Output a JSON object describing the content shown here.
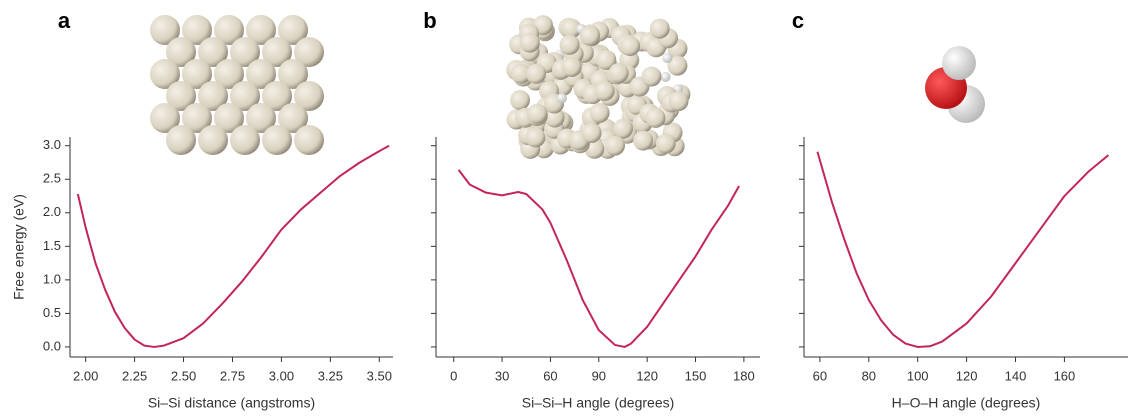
{
  "chart_data": [
    {
      "type": "line",
      "title": "a",
      "x_label": "Si–Si distance (angstroms)",
      "y_label": "Free energy (eV)",
      "x": [
        1.96,
        2.0,
        2.05,
        2.1,
        2.15,
        2.2,
        2.25,
        2.3,
        2.35,
        2.4,
        2.5,
        2.6,
        2.7,
        2.8,
        2.9,
        3.0,
        3.1,
        3.2,
        3.3,
        3.4,
        3.5,
        3.55
      ],
      "series": [
        {
          "color": "#c2255c",
          "values": [
            2.28,
            1.78,
            1.25,
            0.85,
            0.52,
            0.28,
            0.11,
            0.02,
            0.0,
            0.02,
            0.13,
            0.35,
            0.65,
            0.98,
            1.35,
            1.75,
            2.05,
            2.3,
            2.55,
            2.75,
            2.92,
            3.0
          ]
        }
      ],
      "xlim": [
        1.92,
        3.57
      ],
      "ylim": [
        -0.15,
        3.13
      ],
      "xticks": [
        {
          "value": 2,
          "label": "2.00"
        },
        2.25,
        {
          "value": 2.5,
          "label": "2.50"
        },
        2.75,
        {
          "value": 3,
          "label": "3.00"
        },
        3.25,
        {
          "value": 3.5,
          "label": "3.50"
        }
      ],
      "yticks": [
        {
          "value": 0,
          "label": "0.0"
        },
        0.5,
        {
          "value": 1,
          "label": "1.0"
        },
        1.5,
        {
          "value": 2,
          "label": "2.0"
        },
        2.5,
        {
          "value": 3,
          "label": "3.0"
        }
      ]
    },
    {
      "type": "line",
      "title": "b",
      "x_label": "Si–Si–H angle (degrees)",
      "x": [
        3,
        10,
        20,
        30,
        40,
        45,
        55,
        60,
        70,
        80,
        90,
        100,
        106,
        110,
        120,
        130,
        140,
        150,
        160,
        170,
        177
      ],
      "series": [
        {
          "color": "#c2255c",
          "values": [
            2.64,
            2.42,
            2.3,
            2.26,
            2.31,
            2.28,
            2.05,
            1.85,
            1.3,
            0.7,
            0.25,
            0.03,
            0.0,
            0.05,
            0.3,
            0.65,
            1.0,
            1.35,
            1.75,
            2.1,
            2.4
          ]
        }
      ],
      "xlim": [
        -11,
        190
      ],
      "ylim": [
        -0.15,
        3.13
      ],
      "xticks": [
        0,
        30,
        60,
        90,
        120,
        150,
        180
      ],
      "yticks": [
        0,
        0.5,
        1,
        1.5,
        2,
        2.5,
        3
      ]
    },
    {
      "type": "line",
      "title": "c",
      "x_label": "H–O–H angle (degrees)",
      "x": [
        59,
        65,
        70,
        75,
        80,
        85,
        90,
        95,
        100,
        105,
        110,
        120,
        130,
        140,
        150,
        160,
        170,
        178
      ],
      "series": [
        {
          "color": "#c2255c",
          "values": [
            2.91,
            2.15,
            1.6,
            1.1,
            0.7,
            0.4,
            0.18,
            0.05,
            0.0,
            0.01,
            0.08,
            0.35,
            0.75,
            1.25,
            1.75,
            2.25,
            2.62,
            2.86
          ]
        }
      ],
      "xlim": [
        53.5,
        186
      ],
      "ylim": [
        -0.15,
        3.13
      ],
      "xticks": [
        60,
        80,
        100,
        120,
        140,
        160
      ],
      "yticks": [
        0,
        0.5,
        1,
        1.5,
        2,
        2.5,
        3
      ]
    }
  ]
}
